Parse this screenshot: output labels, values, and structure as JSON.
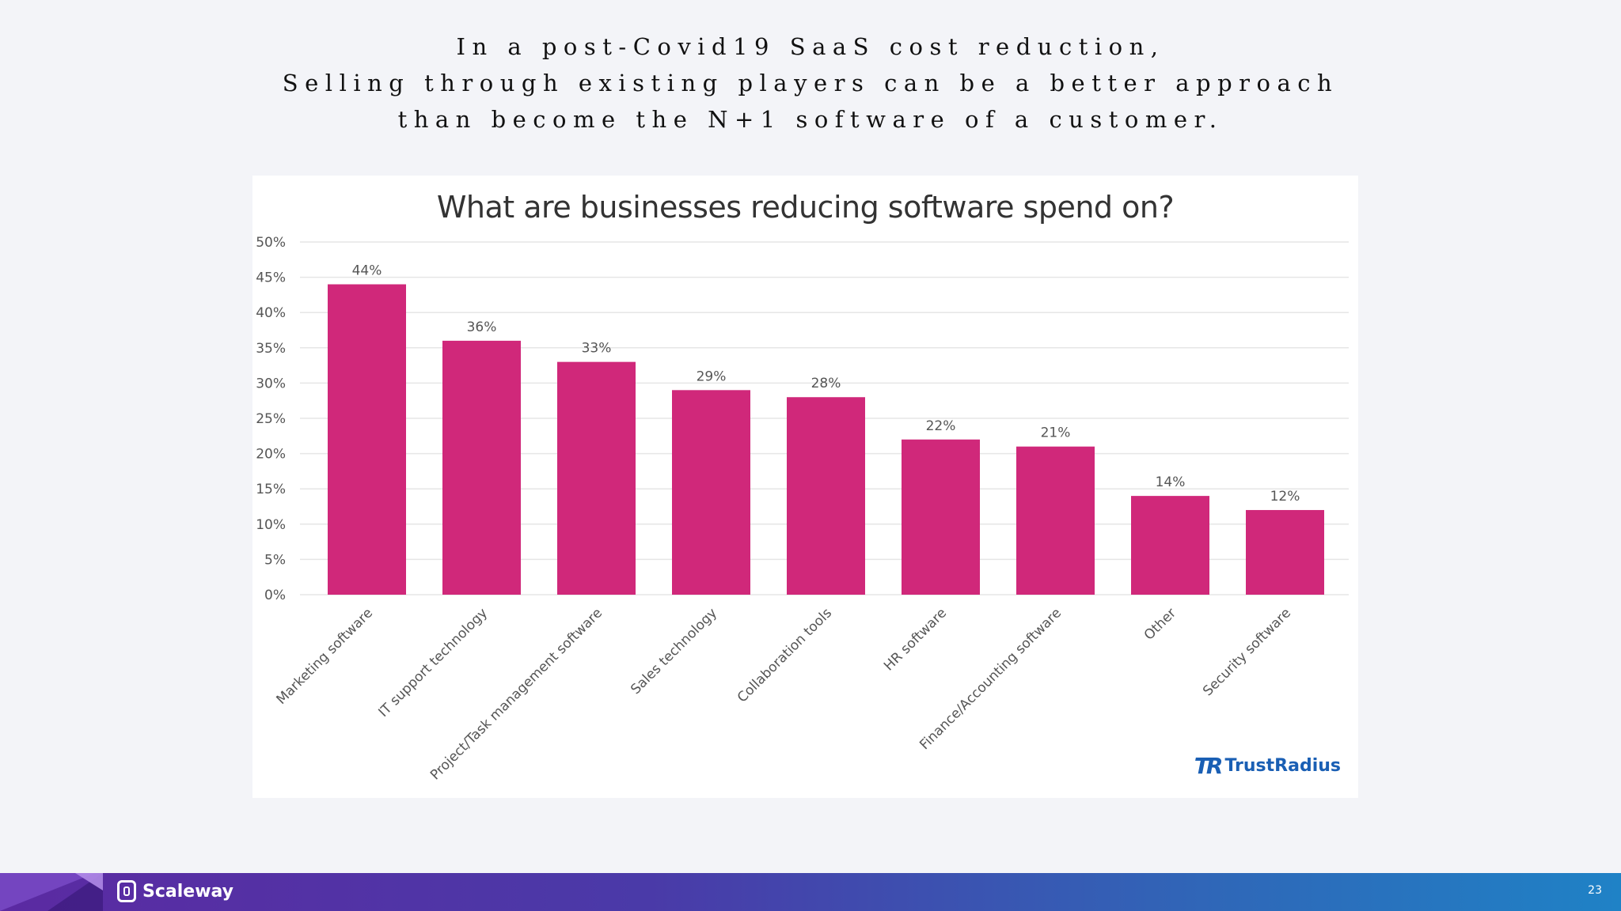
{
  "headline": {
    "line1": "In a post-Covid19 SaaS cost reduction,",
    "line2": "Selling through existing players can be a better approach",
    "line3": "than become the N+1 software of a customer."
  },
  "chart_data": {
    "type": "bar",
    "title": "What are businesses reducing software spend on?",
    "xlabel": "",
    "ylabel": "",
    "categories": [
      "Marketing software",
      "IT support technology",
      "Project/Task management software",
      "Sales technology",
      "Collaboration tools",
      "HR software",
      "Finance/Accounting software",
      "Other",
      "Security software"
    ],
    "values": [
      44,
      36,
      33,
      29,
      28,
      22,
      21,
      14,
      12
    ],
    "value_labels": [
      "44%",
      "36%",
      "33%",
      "29%",
      "28%",
      "22%",
      "21%",
      "14%",
      "12%"
    ],
    "ylim": [
      0,
      50
    ],
    "yticks": [
      "0%",
      "5%",
      "10%",
      "15%",
      "20%",
      "25%",
      "30%",
      "35%",
      "40%",
      "45%",
      "50%"
    ],
    "grid": true,
    "bar_color": "#d0287a"
  },
  "source_brand": "TrustRadius",
  "footer": {
    "brand": "Scaleway",
    "page_number": "23"
  }
}
